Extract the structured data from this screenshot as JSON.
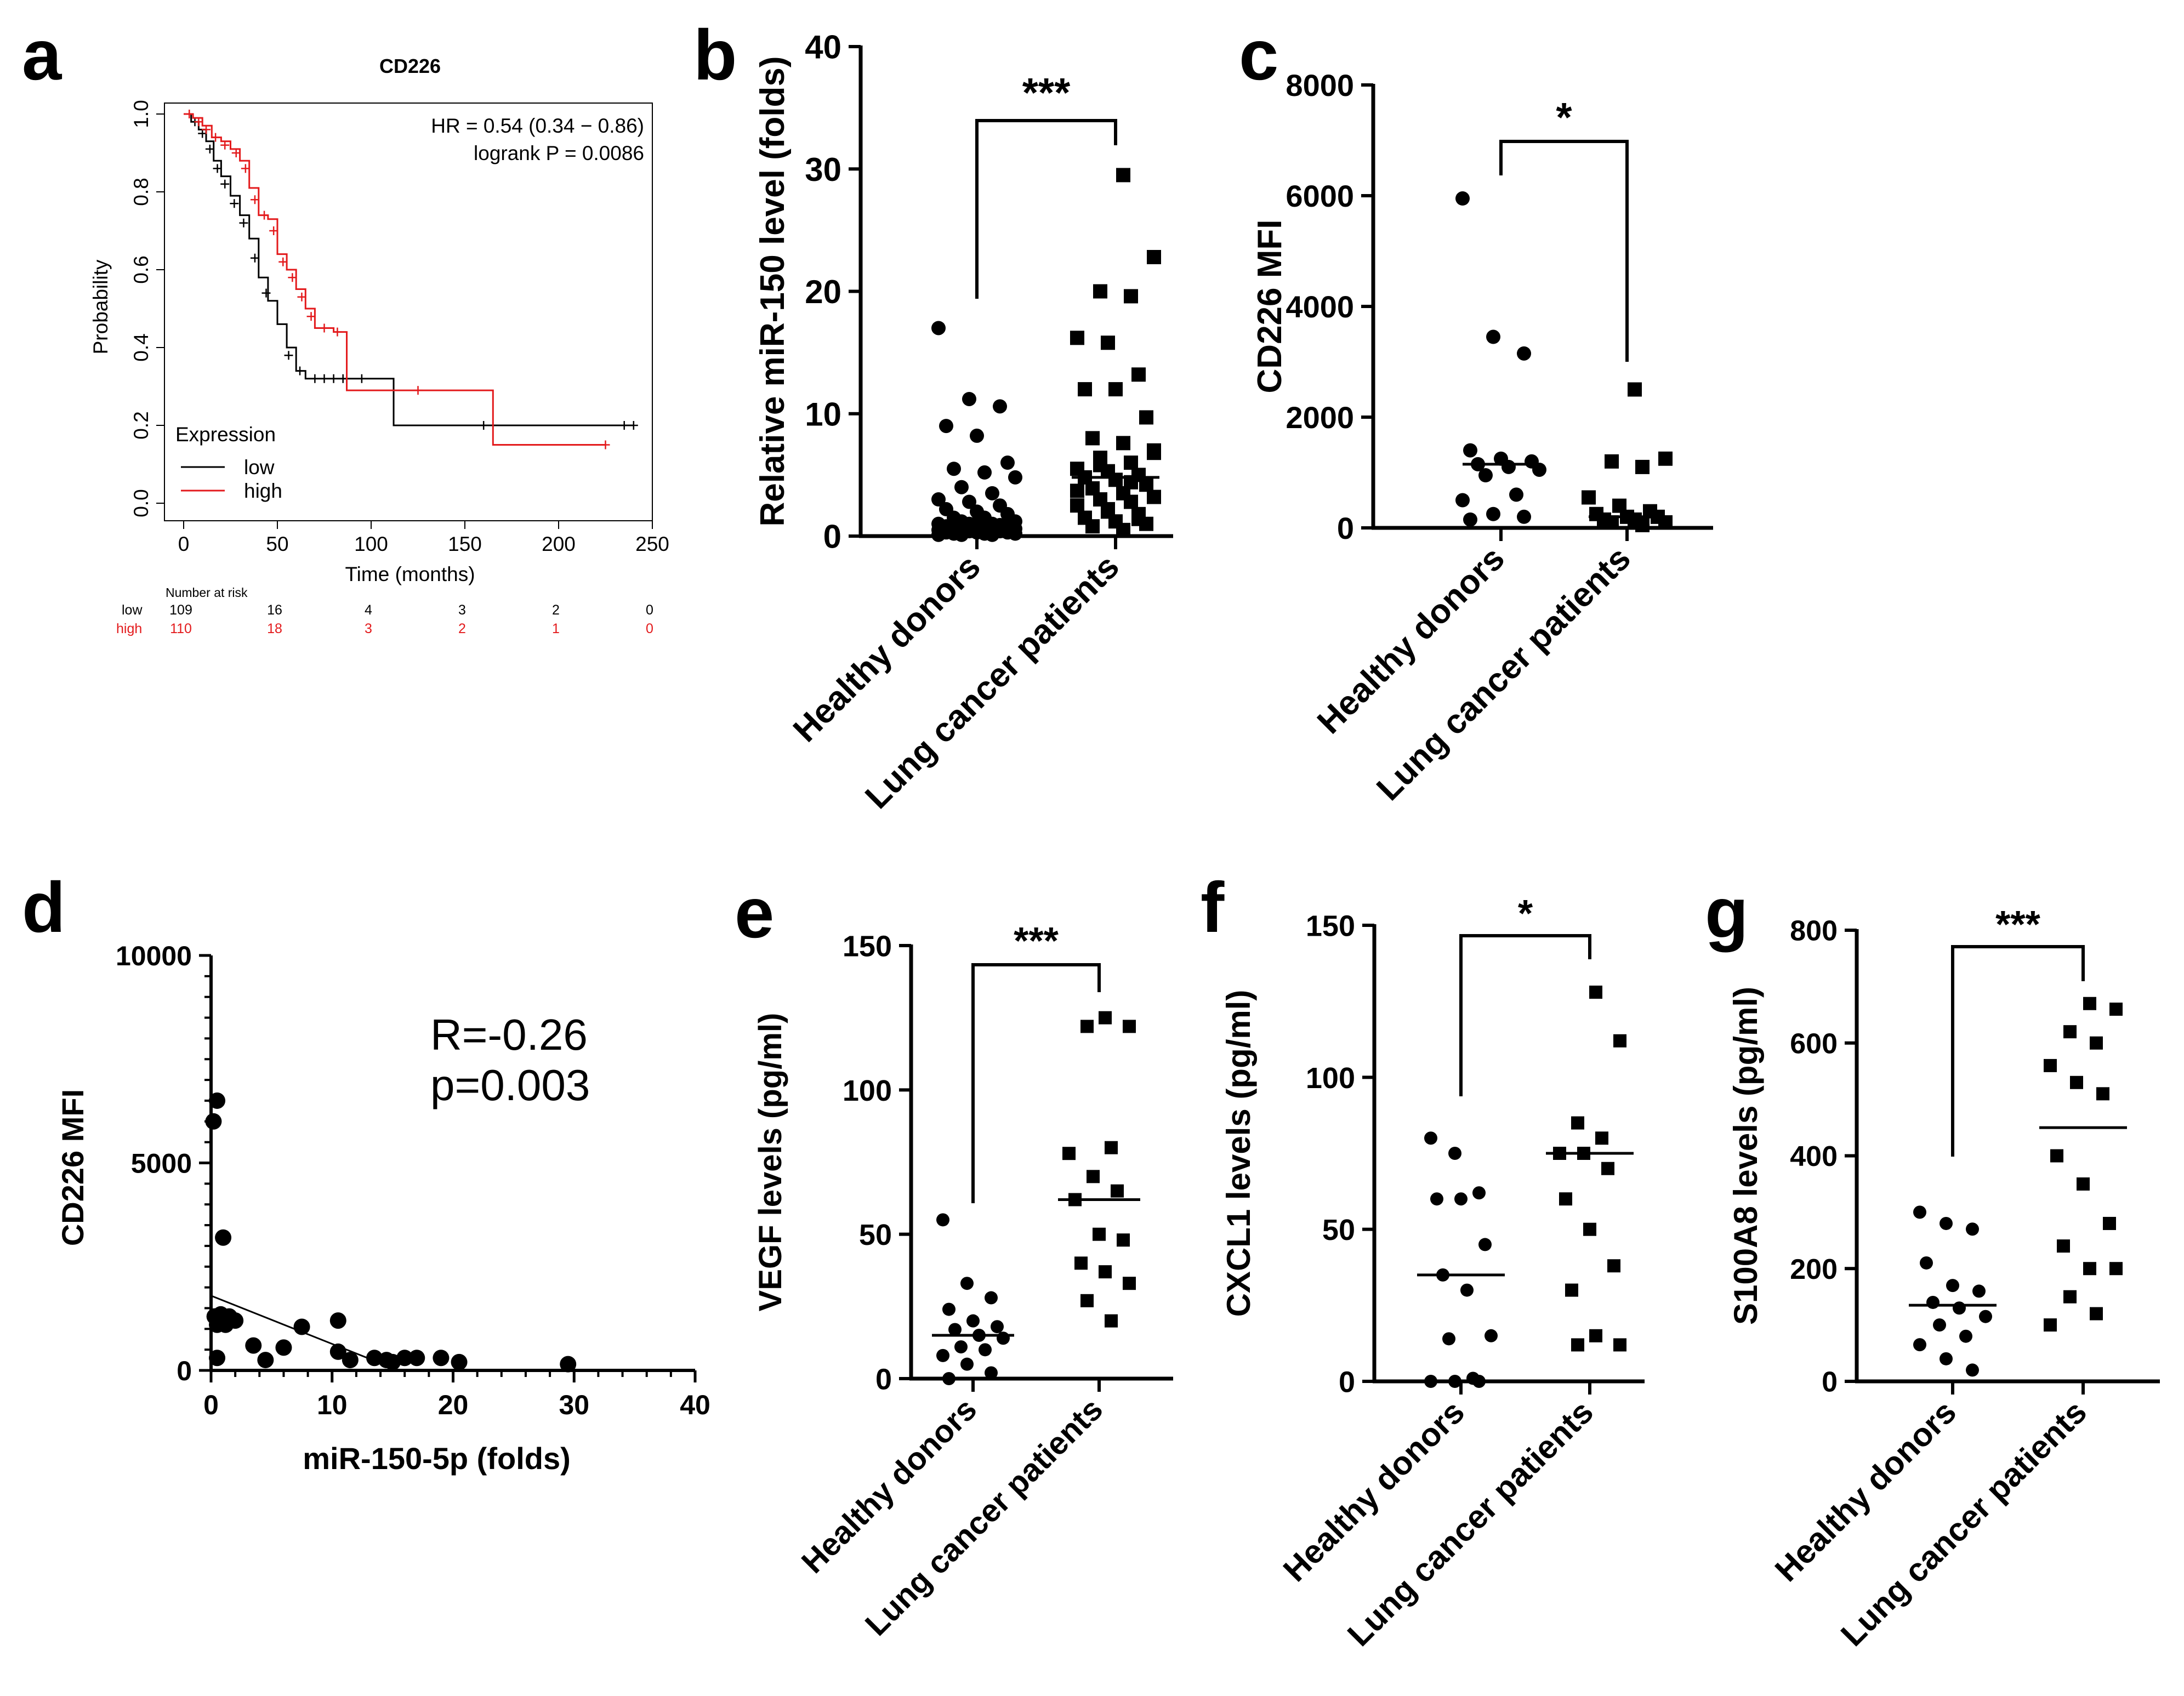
{
  "figure": {
    "panel_letters": [
      "a",
      "b",
      "c",
      "d",
      "e",
      "f",
      "g"
    ]
  },
  "chart_data": [
    {
      "panel": "a",
      "type": "line",
      "title": "CD226",
      "xlabel": "Time (months)",
      "ylabel": "Probability",
      "xlim": [
        0,
        250
      ],
      "ylim": [
        0,
        1
      ],
      "xticks": [
        "0",
        "50",
        "100",
        "150",
        "200",
        "250"
      ],
      "yticks": [
        "0.0",
        "0.2",
        "0.4",
        "0.6",
        "0.8",
        "1.0"
      ],
      "annotations": [
        "HR = 0.54 (0.34 − 0.86)",
        "logrank P = 0.0086"
      ],
      "legend_title": "Expression",
      "legend_position": "bottom-left",
      "series": [
        {
          "name": "low",
          "color": "#000000",
          "steps": [
            [
              0,
              1.0
            ],
            [
              4,
              0.98
            ],
            [
              8,
              0.96
            ],
            [
              12,
              0.93
            ],
            [
              16,
              0.88
            ],
            [
              20,
              0.84
            ],
            [
              25,
              0.79
            ],
            [
              30,
              0.74
            ],
            [
              35,
              0.68
            ],
            [
              40,
              0.58
            ],
            [
              45,
              0.52
            ],
            [
              50,
              0.46
            ],
            [
              55,
              0.4
            ],
            [
              60,
              0.34
            ],
            [
              65,
              0.32
            ],
            [
              80,
              0.32
            ],
            [
              112,
              0.32
            ],
            [
              112,
              0.2
            ],
            [
              240,
              0.2
            ]
          ],
          "censors": [
            [
              6,
              0.98
            ],
            [
              10,
              0.95
            ],
            [
              14,
              0.91
            ],
            [
              18,
              0.86
            ],
            [
              22,
              0.82
            ],
            [
              27,
              0.77
            ],
            [
              32,
              0.72
            ],
            [
              38,
              0.63
            ],
            [
              44,
              0.54
            ],
            [
              56,
              0.38
            ],
            [
              62,
              0.34
            ],
            [
              70,
              0.32
            ],
            [
              75,
              0.32
            ],
            [
              80,
              0.32
            ],
            [
              85,
              0.32
            ],
            [
              95,
              0.32
            ],
            [
              160,
              0.2
            ],
            [
              235,
              0.2
            ],
            [
              240,
              0.2
            ]
          ]
        },
        {
          "name": "high",
          "color": "#e31a1c",
          "steps": [
            [
              0,
              1.0
            ],
            [
              5,
              0.99
            ],
            [
              10,
              0.97
            ],
            [
              15,
              0.94
            ],
            [
              20,
              0.93
            ],
            [
              25,
              0.91
            ],
            [
              30,
              0.88
            ],
            [
              35,
              0.81
            ],
            [
              40,
              0.74
            ],
            [
              45,
              0.73
            ],
            [
              50,
              0.64
            ],
            [
              55,
              0.6
            ],
            [
              60,
              0.55
            ],
            [
              65,
              0.5
            ],
            [
              70,
              0.45
            ],
            [
              80,
              0.44
            ],
            [
              87,
              0.44
            ],
            [
              87,
              0.29
            ],
            [
              165,
              0.29
            ],
            [
              165,
              0.15
            ],
            [
              225,
              0.15
            ]
          ],
          "censors": [
            [
              3,
              1.0
            ],
            [
              8,
              0.98
            ],
            [
              12,
              0.96
            ],
            [
              17,
              0.94
            ],
            [
              22,
              0.92
            ],
            [
              28,
              0.9
            ],
            [
              33,
              0.86
            ],
            [
              38,
              0.78
            ],
            [
              43,
              0.74
            ],
            [
              48,
              0.7
            ],
            [
              53,
              0.62
            ],
            [
              58,
              0.58
            ],
            [
              63,
              0.53
            ],
            [
              68,
              0.48
            ],
            [
              75,
              0.45
            ],
            [
              82,
              0.44
            ],
            [
              125,
              0.29
            ],
            [
              225,
              0.15
            ]
          ]
        }
      ],
      "risk_table": {
        "header": "Number at risk",
        "rows": [
          {
            "label": "low",
            "color": "#000000",
            "values": [
              "109",
              "16",
              "4",
              "3",
              "2",
              "0"
            ]
          },
          {
            "label": "high",
            "color": "#e31a1c",
            "values": [
              "110",
              "18",
              "3",
              "2",
              "1",
              "0"
            ]
          }
        ]
      }
    },
    {
      "panel": "b",
      "type": "scatter",
      "ylabel": "Relative miR-150 level (folds)",
      "ylim": [
        0,
        40
      ],
      "yticks": [
        "0",
        "10",
        "20",
        "30",
        "40"
      ],
      "categories": [
        "Healthy donors",
        "Lung cancer patients"
      ],
      "significance": "***",
      "series": [
        {
          "name": "Healthy donors",
          "marker": "circle",
          "median": 1.0,
          "values": [
            17.0,
            11.2,
            10.6,
            9.0,
            8.2,
            6.0,
            5.5,
            5.2,
            4.8,
            4.0,
            3.5,
            3.0,
            2.8,
            2.5,
            2.2,
            2.0,
            1.8,
            1.5,
            1.5,
            1.2,
            1.2,
            1.0,
            1.0,
            1.0,
            0.9,
            0.8,
            0.8,
            0.8,
            0.7,
            0.6,
            0.6,
            0.5,
            0.5,
            0.5,
            0.4,
            0.4,
            0.3,
            0.3,
            0.3,
            0.2,
            0.2,
            0.2,
            0.1,
            0.1,
            0.1,
            0.9,
            0.5,
            0.4,
            1.1,
            0.7
          ]
        },
        {
          "name": "Lung cancer patients",
          "marker": "square",
          "median": 4.8,
          "values": [
            29.5,
            22.8,
            20.0,
            19.6,
            16.2,
            15.8,
            13.2,
            12.0,
            12.0,
            9.7,
            8.0,
            7.6,
            7.0,
            6.4,
            6.0,
            5.5,
            5.3,
            5.0,
            4.8,
            4.6,
            4.2,
            3.9,
            3.5,
            3.2,
            3.0,
            2.8,
            2.5,
            2.0,
            1.8,
            1.5,
            1.2,
            1.0,
            0.8,
            0.5,
            6.8,
            5.8,
            4.4,
            3.7,
            2.2,
            1.4
          ]
        }
      ]
    },
    {
      "panel": "c",
      "type": "scatter",
      "ylabel": "CD226 MFI",
      "ylim": [
        0,
        8000
      ],
      "yticks": [
        "0",
        "2000",
        "4000",
        "6000",
        "8000"
      ],
      "categories": [
        "Healthy donors",
        "Lung cancer patients"
      ],
      "significance": "*",
      "series": [
        {
          "name": "Healthy donors",
          "marker": "circle",
          "median": 1150,
          "values": [
            5950,
            3450,
            3150,
            1400,
            1250,
            1200,
            1150,
            1100,
            1050,
            950,
            600,
            500,
            250,
            200,
            150
          ]
        },
        {
          "name": "Lung cancer patients",
          "marker": "square",
          "median": 200,
          "values": [
            2500,
            1250,
            1200,
            1100,
            550,
            400,
            300,
            250,
            200,
            200,
            150,
            150,
            100,
            100,
            50
          ]
        }
      ]
    },
    {
      "panel": "d",
      "type": "scatter",
      "xlabel": "miR-150-5p (folds)",
      "ylabel": "CD226 MFI",
      "xlim": [
        0,
        40
      ],
      "ylim": [
        0,
        10000
      ],
      "xticks": [
        "0",
        "10",
        "20",
        "30",
        "40"
      ],
      "yticks": [
        "0",
        "5000",
        "10000"
      ],
      "annotations": [
        "R=-0.26",
        "p=0.003"
      ],
      "fit_line": [
        [
          0,
          1800
        ],
        [
          15.5,
          0
        ]
      ],
      "points": [
        [
          0.2,
          6000
        ],
        [
          0.5,
          6500
        ],
        [
          1.0,
          3200
        ],
        [
          0.3,
          1300
        ],
        [
          0.5,
          1100
        ],
        [
          0.8,
          1350
        ],
        [
          1.2,
          1100
        ],
        [
          1.5,
          1300
        ],
        [
          2.0,
          1200
        ],
        [
          0.5,
          300
        ],
        [
          3.5,
          600
        ],
        [
          4.5,
          250
        ],
        [
          6.0,
          550
        ],
        [
          7.5,
          1050
        ],
        [
          10.5,
          1200
        ],
        [
          10.5,
          450
        ],
        [
          11.5,
          250
        ],
        [
          13.5,
          300
        ],
        [
          14.5,
          250
        ],
        [
          15.0,
          200
        ],
        [
          16.0,
          300
        ],
        [
          17.0,
          300
        ],
        [
          19.0,
          300
        ],
        [
          20.5,
          200
        ],
        [
          29.5,
          150
        ]
      ]
    },
    {
      "panel": "e",
      "type": "scatter",
      "ylabel": "VEGF levels (pg/ml)",
      "ylim": [
        0,
        150
      ],
      "yticks": [
        "0",
        "50",
        "100",
        "150"
      ],
      "categories": [
        "Healthy donors",
        "Lung cancer patients"
      ],
      "significance": "***",
      "series": [
        {
          "name": "Healthy donors",
          "marker": "circle",
          "median": 15,
          "values": [
            55,
            33,
            28,
            24,
            20,
            18,
            17,
            15,
            14,
            11,
            10,
            8,
            5,
            2,
            0
          ]
        },
        {
          "name": "Lung cancer patients",
          "marker": "square",
          "median": 62,
          "values": [
            125,
            122,
            122,
            80,
            78,
            70,
            65,
            62,
            50,
            48,
            40,
            37,
            33,
            27,
            20
          ]
        }
      ]
    },
    {
      "panel": "f",
      "type": "scatter",
      "ylabel": "CXCL1 levels (pg/ml)",
      "ylim": [
        0,
        150
      ],
      "yticks": [
        "0",
        "50",
        "100",
        "150"
      ],
      "categories": [
        "Healthy donors",
        "Lung cancer patients"
      ],
      "significance": "*",
      "series": [
        {
          "name": "Healthy donors",
          "marker": "circle",
          "median": 35,
          "values": [
            80,
            75,
            62,
            60,
            60,
            45,
            35,
            30,
            15,
            14,
            1,
            0,
            0,
            0
          ]
        },
        {
          "name": "Lung cancer patients",
          "marker": "square",
          "median": 75,
          "values": [
            128,
            112,
            85,
            80,
            75,
            75,
            70,
            60,
            50,
            38,
            30,
            15,
            12,
            12
          ]
        }
      ]
    },
    {
      "panel": "g",
      "type": "scatter",
      "ylabel": "S100A8 levels (pg/ml)",
      "ylim": [
        0,
        800
      ],
      "yticks": [
        "0",
        "200",
        "400",
        "600",
        "800"
      ],
      "categories": [
        "Healthy donors",
        "Lung cancer patients"
      ],
      "significance": "***",
      "series": [
        {
          "name": "Healthy donors",
          "marker": "circle",
          "median": 135,
          "values": [
            300,
            280,
            270,
            210,
            170,
            160,
            140,
            130,
            115,
            100,
            80,
            65,
            40,
            20
          ]
        },
        {
          "name": "Lung cancer patients",
          "marker": "square",
          "median": 450,
          "values": [
            670,
            660,
            620,
            600,
            560,
            530,
            510,
            400,
            350,
            280,
            240,
            200,
            200,
            150,
            120,
            100
          ]
        }
      ]
    }
  ]
}
